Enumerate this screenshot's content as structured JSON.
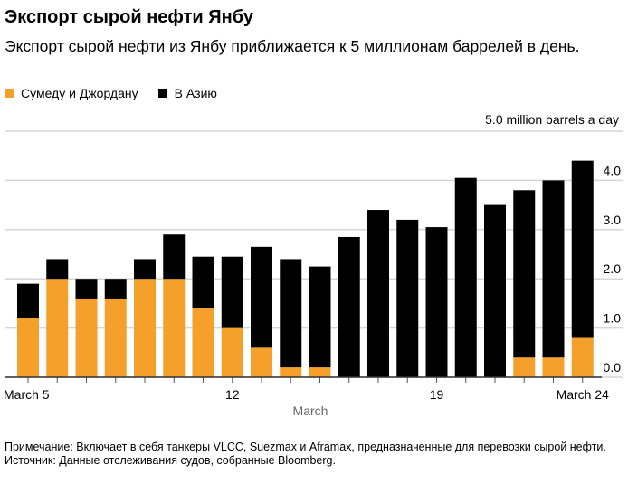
{
  "chart_data": {
    "type": "bar",
    "stacked": true,
    "title": "Экспорт сырой нефти Янбу",
    "subtitle": "Экспорт сырой нефти из Янбу приближается к 5 миллионам баррелей в день.",
    "unit_label": "5.0 million barrels a day",
    "xlabel": "March",
    "ylabel": "",
    "ylim": [
      0,
      5
    ],
    "yticks": [
      "0.0",
      "1.0",
      "2.0",
      "3.0",
      "4.0"
    ],
    "y_axis_side": "right",
    "grid": true,
    "legend_placement": "top-left",
    "categories": [
      "March 5",
      "March 6",
      "March 7",
      "March 8",
      "March 9",
      "March 10",
      "March 11",
      "March 12",
      "March 13",
      "March 14",
      "March 15",
      "March 16",
      "March 17",
      "March 18",
      "March 19",
      "March 20",
      "March 21",
      "March 22",
      "March 23",
      "March 24"
    ],
    "x_tick_labels": [
      {
        "index": 0,
        "label": "March 5"
      },
      {
        "index": 7,
        "label": "12"
      },
      {
        "index": 14,
        "label": "19"
      },
      {
        "index": 19,
        "label": "March 24"
      }
    ],
    "series": [
      {
        "name": "Сумеду и Джордану",
        "color": "#f5a02a",
        "values": [
          1.2,
          2.0,
          1.6,
          1.6,
          2.0,
          2.0,
          1.4,
          1.0,
          0.6,
          0.2,
          0.2,
          0,
          0,
          0,
          0,
          0,
          0,
          0.4,
          0.4,
          0.8
        ]
      },
      {
        "name": "В Азию",
        "color": "#000000",
        "values": [
          0.7,
          0.4,
          0.4,
          0.4,
          0.4,
          0.9,
          1.05,
          1.45,
          2.05,
          2.2,
          2.05,
          2.85,
          3.4,
          3.2,
          3.05,
          4.05,
          3.5,
          3.4,
          3.6,
          3.6
        ]
      }
    ]
  },
  "footer": {
    "note": "Примечание: Включает в себя танкеры VLCC, Suezmax и Aframax, предназначенные для перевозки сырой нефти.",
    "source": "Источник: Данные отслеживания судов, собранные Bloomberg."
  }
}
